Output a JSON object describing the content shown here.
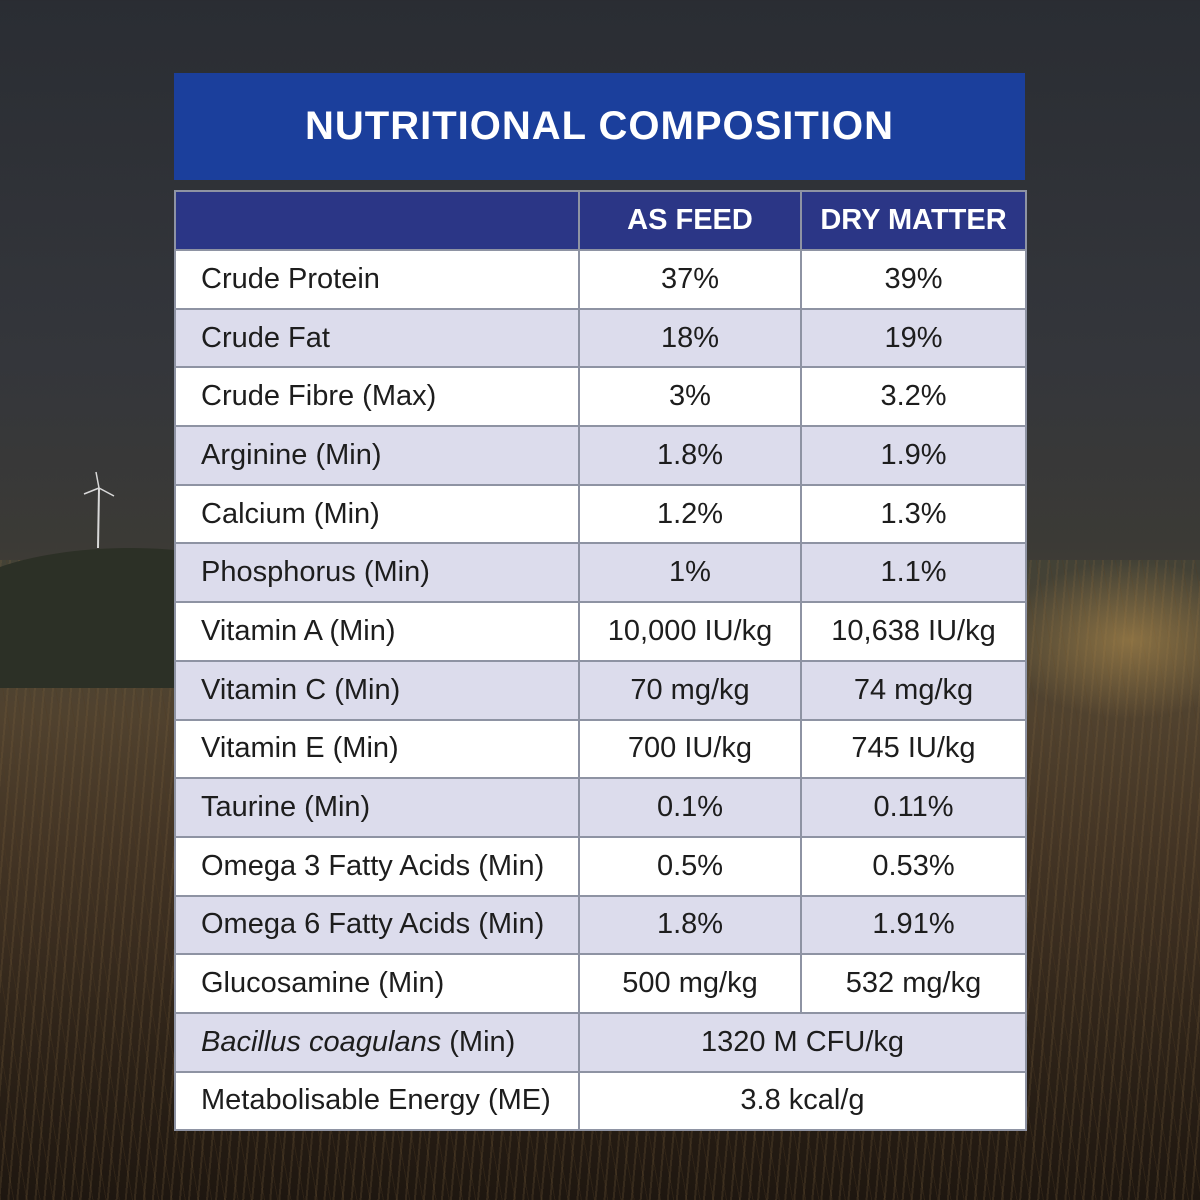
{
  "title": "NUTRITIONAL COMPOSITION",
  "columns": [
    "",
    "AS FEED",
    "DRY MATTER"
  ],
  "rows": [
    {
      "label": "Crude Protein",
      "as_feed": "37%",
      "dry_matter": "39%"
    },
    {
      "label": "Crude Fat",
      "as_feed": "18%",
      "dry_matter": "19%"
    },
    {
      "label": "Crude Fibre (Max)",
      "as_feed": "3%",
      "dry_matter": "3.2%"
    },
    {
      "label": "Arginine (Min)",
      "as_feed": "1.8%",
      "dry_matter": "1.9%"
    },
    {
      "label": "Calcium (Min)",
      "as_feed": "1.2%",
      "dry_matter": "1.3%"
    },
    {
      "label": "Phosphorus (Min)",
      "as_feed": "1%",
      "dry_matter": "1.1%"
    },
    {
      "label": "Vitamin A (Min)",
      "as_feed": "10,000 IU/kg",
      "dry_matter": "10,638 IU/kg"
    },
    {
      "label": "Vitamin C (Min)",
      "as_feed": "70 mg/kg",
      "dry_matter": "74 mg/kg"
    },
    {
      "label": "Vitamin E (Min)",
      "as_feed": "700 IU/kg",
      "dry_matter": "745 IU/kg"
    },
    {
      "label": "Taurine (Min)",
      "as_feed": "0.1%",
      "dry_matter": "0.11%"
    },
    {
      "label": "Omega 3 Fatty Acids (Min)",
      "as_feed": "0.5%",
      "dry_matter": "0.53%"
    },
    {
      "label": "Omega 6 Fatty Acids (Min)",
      "as_feed": "1.8%",
      "dry_matter": "1.91%"
    },
    {
      "label": "Glucosamine (Min)",
      "as_feed": "500 mg/kg",
      "dry_matter": "532 mg/kg"
    }
  ],
  "merged_rows": [
    {
      "label_italic": "Bacillus coagulans",
      "label_suffix": " (Min)",
      "value": "1320 M CFU/kg"
    },
    {
      "label": "Metabolisable Energy (ME)",
      "value": "3.8 kcal/g"
    }
  ],
  "colors": {
    "title_bar": "#1b3f9c",
    "header_row": "#2b3686",
    "stripe": "#dcdcec",
    "border": "#8e93a3"
  }
}
